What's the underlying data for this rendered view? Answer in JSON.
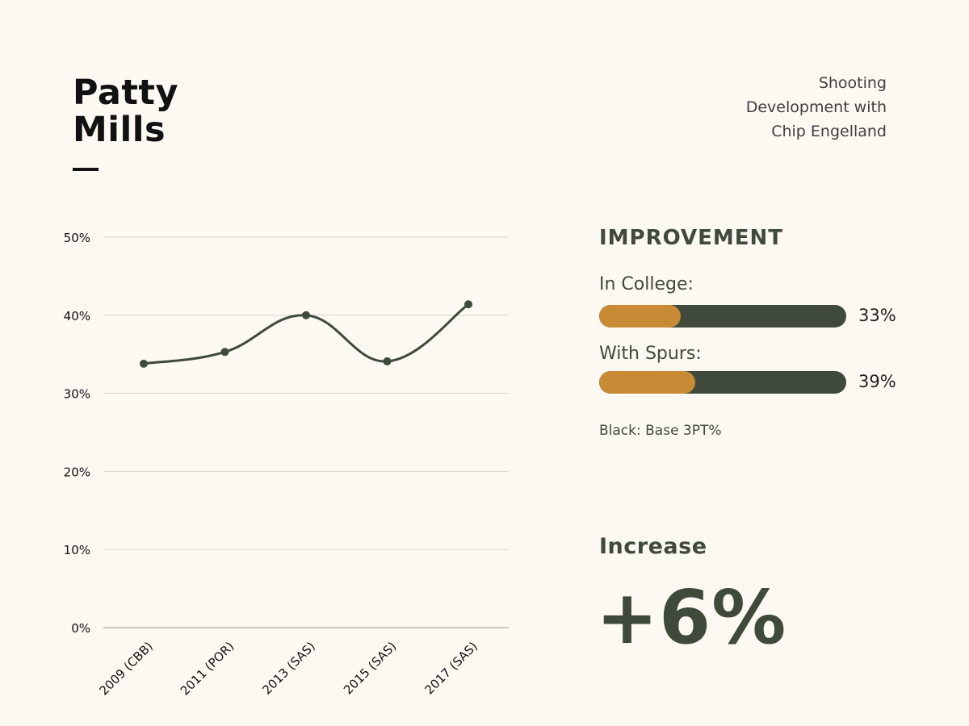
{
  "header": {
    "title_line1": "Patty",
    "title_line2": "Mills",
    "subtitle_line1": "Shooting",
    "subtitle_line2": "Development with",
    "subtitle_line3": "Chip Engelland"
  },
  "improvement": {
    "heading": "IMPROVEMENT",
    "bars": [
      {
        "label": "In College:",
        "value_text": "33%",
        "fill_fraction": 0.33
      },
      {
        "label": "With Spurs:",
        "value_text": "39%",
        "fill_fraction": 0.39
      }
    ],
    "legend_note": "Black: Base 3PT%"
  },
  "increase": {
    "heading": "Increase",
    "value": "+6%"
  },
  "colors": {
    "background": "#fcf8f2",
    "dark_green": "#3f4a3a",
    "accent_orange": "#c98a35",
    "grid": "#d9d6d0"
  },
  "chart_data": {
    "type": "line",
    "title": "",
    "xlabel": "",
    "ylabel": "",
    "categories": [
      "2009 (CBB)",
      "2011 (POR)",
      "2013 (SAS)",
      "2015 (SAS)",
      "2017 (SAS)"
    ],
    "values": [
      33.8,
      35.3,
      40.0,
      34.1,
      41.4
    ],
    "ylim": [
      0,
      50
    ],
    "yticks": [
      0,
      10,
      20,
      30,
      40,
      50
    ],
    "ytick_labels": [
      "0%",
      "10%",
      "20%",
      "30%",
      "40%",
      "50%"
    ],
    "grid": true,
    "smooth": true
  }
}
